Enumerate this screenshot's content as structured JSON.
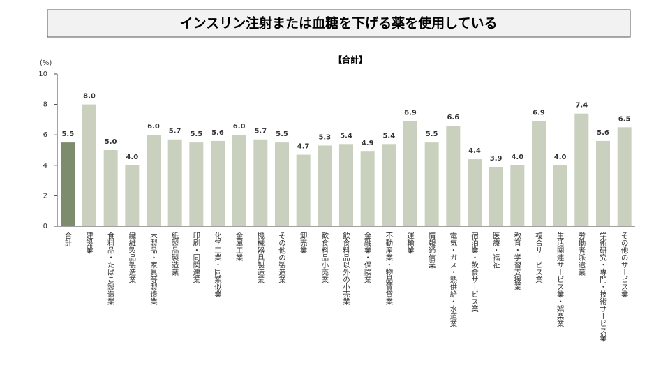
{
  "chart_data": {
    "type": "bar",
    "title": "インスリン注射または血糖を下げる薬を使用している",
    "subtitle": "【合計】",
    "y_label": "(%)",
    "categories": [
      "合計",
      "建設業",
      "食料品・たばこ製造業",
      "繊維製品製造業",
      "木製品・家具等製造業",
      "紙製品製造業",
      "印刷・同関連業",
      "化学工業・同類似業",
      "金属工業",
      "機械器具製造業",
      "その他の製造業",
      "卸売業",
      "飲食料品小売業",
      "飲食料品以外の小売業",
      "金融業・保険業",
      "不動産業・物品賃貸業",
      "運輸業",
      "情報通信業",
      "電気・ガス・熱供給・水道業",
      "宿泊業・飲食サービス業",
      "医療・福祉",
      "教育・学習支援業",
      "複合サービス業",
      "生活関連サービス業・娯楽業",
      "労働者派遣業",
      "学術研究・専門・技術サービス業",
      "その他のサービス業"
    ],
    "values": [
      5.5,
      8.0,
      5.0,
      4.0,
      6.0,
      5.7,
      5.5,
      5.6,
      6.0,
      5.7,
      5.5,
      4.7,
      5.3,
      5.4,
      4.9,
      5.4,
      6.9,
      5.5,
      6.6,
      4.4,
      3.9,
      4.0,
      6.9,
      4.0,
      7.4,
      5.6,
      6.5
    ],
    "value_labels": [
      "5.5",
      "8.0",
      "5.0",
      "4.0",
      "6.0",
      "5.7",
      "5.5",
      "5.6",
      "6.0",
      "5.7",
      "5.5",
      "4.7",
      "5.3",
      "5.4",
      "4.9",
      "5.4",
      "6.9",
      "5.5",
      "6.6",
      "4.4",
      "3.9",
      "4.0",
      "6.9",
      "4.0",
      "7.4",
      "5.6",
      "6.5"
    ],
    "colors": [
      "#7d8c6c",
      "#c9d1be",
      "#c9d1be",
      "#c9d1be",
      "#c9d1be",
      "#c9d1be",
      "#c9d1be",
      "#c9d1be",
      "#c9d1be",
      "#c9d1be",
      "#c9d1be",
      "#c9d1be",
      "#c9d1be",
      "#c9d1be",
      "#c9d1be",
      "#c9d1be",
      "#c9d1be",
      "#c9d1be",
      "#c9d1be",
      "#c9d1be",
      "#c9d1be",
      "#c9d1be",
      "#c9d1be",
      "#c9d1be",
      "#c9d1be",
      "#c9d1be",
      "#c9d1be"
    ],
    "ylim": [
      0,
      10
    ],
    "yticks": [
      0,
      2,
      4,
      6,
      8,
      10
    ],
    "grid": false
  }
}
